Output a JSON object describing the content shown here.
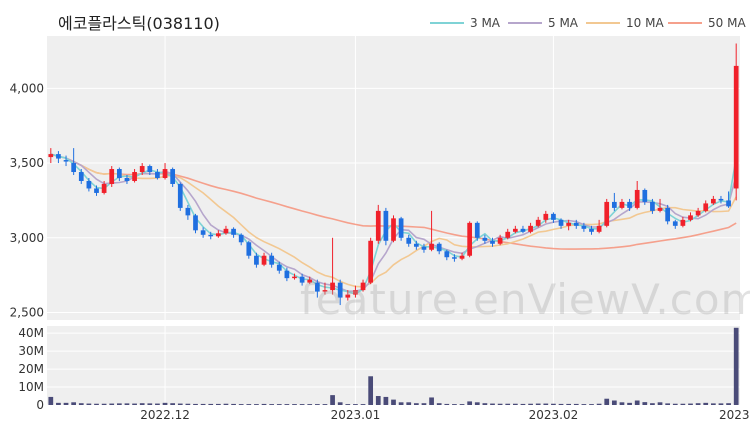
{
  "title": "에코플라스틱(038110)",
  "watermark": "feature.enViewV.com",
  "legend": [
    {
      "label": "3 MA",
      "color": "#7fd3d6"
    },
    {
      "label": "5 MA",
      "color": "#b6a6cc"
    },
    {
      "label": "10 MA",
      "color": "#f2c892"
    },
    {
      "label": "50 MA",
      "color": "#f5a08c"
    }
  ],
  "colors": {
    "up": "#f0202a",
    "down": "#1f6fe0",
    "volume": "#4a4b78",
    "panel_bg": "#efefef"
  },
  "chart_data": {
    "type": "candlestick",
    "price_ylim": [
      2450,
      4350
    ],
    "price_ticks": [
      {
        "v": 2500,
        "label": "2,500"
      },
      {
        "v": 3000,
        "label": "3,000"
      },
      {
        "v": 3500,
        "label": "3,500"
      },
      {
        "v": 4000,
        "label": "4,000"
      }
    ],
    "volume_ylim": [
      0,
      44000000
    ],
    "volume_ticks": [
      {
        "v": 0,
        "label": "0"
      },
      {
        "v": 10000000,
        "label": "10M"
      },
      {
        "v": 20000000,
        "label": "20M"
      },
      {
        "v": 30000000,
        "label": "30M"
      },
      {
        "v": 40000000,
        "label": "40M"
      }
    ],
    "x_labels": [
      {
        "i": 15,
        "label": "2022.12"
      },
      {
        "i": 40,
        "label": "2023.01"
      },
      {
        "i": 66,
        "label": "2023.02"
      },
      {
        "i": 91,
        "label": "2023.03"
      }
    ],
    "candles": [
      [
        3540,
        3560,
        3600,
        3500
      ],
      [
        3560,
        3530,
        3580,
        3500
      ],
      [
        3520,
        3510,
        3550,
        3480
      ],
      [
        3500,
        3440,
        3600,
        3420
      ],
      [
        3440,
        3380,
        3460,
        3360
      ],
      [
        3380,
        3330,
        3400,
        3310
      ],
      [
        3330,
        3300,
        3350,
        3280
      ],
      [
        3300,
        3360,
        3380,
        3290
      ],
      [
        3360,
        3460,
        3480,
        3340
      ],
      [
        3460,
        3400,
        3470,
        3380
      ],
      [
        3400,
        3380,
        3420,
        3360
      ],
      [
        3380,
        3440,
        3460,
        3370
      ],
      [
        3440,
        3480,
        3500,
        3420
      ],
      [
        3480,
        3440,
        3490,
        3420
      ],
      [
        3440,
        3400,
        3460,
        3390
      ],
      [
        3400,
        3460,
        3500,
        3390
      ],
      [
        3460,
        3360,
        3470,
        3340
      ],
      [
        3360,
        3200,
        3370,
        3180
      ],
      [
        3200,
        3150,
        3220,
        3120
      ],
      [
        3150,
        3050,
        3160,
        3030
      ],
      [
        3050,
        3020,
        3070,
        3000
      ],
      [
        3020,
        3010,
        3040,
        2990
      ],
      [
        3010,
        3030,
        3050,
        3000
      ],
      [
        3030,
        3060,
        3080,
        3020
      ],
      [
        3060,
        3020,
        3070,
        3000
      ],
      [
        3020,
        2970,
        3030,
        2950
      ],
      [
        2970,
        2880,
        2980,
        2860
      ],
      [
        2880,
        2820,
        2900,
        2800
      ],
      [
        2820,
        2880,
        2900,
        2810
      ],
      [
        2880,
        2820,
        2900,
        2800
      ],
      [
        2820,
        2780,
        2840,
        2760
      ],
      [
        2780,
        2730,
        2800,
        2710
      ],
      [
        2730,
        2740,
        2760,
        2720
      ],
      [
        2740,
        2700,
        2760,
        2680
      ],
      [
        2700,
        2720,
        2740,
        2690
      ],
      [
        2700,
        2640,
        2720,
        2600
      ],
      [
        2640,
        2650,
        2700,
        2620
      ],
      [
        2650,
        2700,
        3000,
        2620
      ],
      [
        2700,
        2600,
        2720,
        2550
      ],
      [
        2600,
        2620,
        2650,
        2580
      ],
      [
        2620,
        2650,
        2680,
        2600
      ],
      [
        2650,
        2700,
        2720,
        2640
      ],
      [
        2700,
        2980,
        3000,
        2690
      ],
      [
        2980,
        3180,
        3220,
        2960
      ],
      [
        3180,
        2980,
        3200,
        2950
      ],
      [
        2980,
        3130,
        3150,
        2970
      ],
      [
        3130,
        3000,
        3140,
        2980
      ],
      [
        3000,
        2960,
        3020,
        2940
      ],
      [
        2960,
        2940,
        2980,
        2920
      ],
      [
        2940,
        2920,
        2960,
        2900
      ],
      [
        2920,
        2960,
        3180,
        2910
      ],
      [
        2960,
        2910,
        2970,
        2890
      ],
      [
        2910,
        2870,
        2920,
        2850
      ],
      [
        2870,
        2860,
        2890,
        2840
      ],
      [
        2860,
        2880,
        2900,
        2850
      ],
      [
        2880,
        3100,
        3110,
        2870
      ],
      [
        3100,
        3000,
        3110,
        2980
      ],
      [
        3000,
        2980,
        3020,
        2960
      ],
      [
        2980,
        2960,
        3000,
        2940
      ],
      [
        2960,
        3000,
        3020,
        2950
      ],
      [
        3000,
        3040,
        3060,
        2990
      ],
      [
        3040,
        3060,
        3080,
        3030
      ],
      [
        3060,
        3040,
        3080,
        3030
      ],
      [
        3040,
        3080,
        3100,
        3030
      ],
      [
        3080,
        3120,
        3140,
        3070
      ],
      [
        3120,
        3160,
        3180,
        3100
      ],
      [
        3160,
        3120,
        3170,
        3100
      ],
      [
        3120,
        3080,
        3130,
        3060
      ],
      [
        3080,
        3100,
        3120,
        3050
      ],
      [
        3100,
        3080,
        3120,
        3060
      ],
      [
        3080,
        3060,
        3100,
        3040
      ],
      [
        3060,
        3040,
        3080,
        3020
      ],
      [
        3040,
        3080,
        3120,
        3030
      ],
      [
        3080,
        3240,
        3260,
        3070
      ],
      [
        3240,
        3200,
        3300,
        3180
      ],
      [
        3200,
        3240,
        3260,
        3190
      ],
      [
        3240,
        3200,
        3260,
        3180
      ],
      [
        3200,
        3320,
        3380,
        3190
      ],
      [
        3320,
        3240,
        3330,
        3220
      ],
      [
        3240,
        3180,
        3260,
        3160
      ],
      [
        3180,
        3200,
        3260,
        3170
      ],
      [
        3200,
        3110,
        3220,
        3090
      ],
      [
        3110,
        3080,
        3120,
        3060
      ],
      [
        3080,
        3120,
        3140,
        3070
      ],
      [
        3120,
        3150,
        3170,
        3110
      ],
      [
        3150,
        3180,
        3200,
        3140
      ],
      [
        3180,
        3230,
        3250,
        3170
      ],
      [
        3230,
        3260,
        3280,
        3220
      ],
      [
        3260,
        3250,
        3280,
        3230
      ],
      [
        3250,
        3210,
        3310,
        3200
      ],
      [
        3330,
        4150,
        4300,
        3250
      ]
    ],
    "volumes": [
      4500000,
      1200000,
      1200000,
      1500000,
      1000000,
      800000,
      700000,
      700000,
      800000,
      900000,
      900000,
      800000,
      1000000,
      900000,
      800000,
      1200000,
      1000000,
      800000,
      700000,
      600000,
      600000,
      600000,
      600000,
      700000,
      600000,
      500000,
      500000,
      500000,
      600000,
      500000,
      500000,
      500000,
      500000,
      500000,
      500000,
      500000,
      500000,
      5500000,
      1500000,
      500000,
      500000,
      500000,
      16000000,
      5000000,
      4500000,
      3000000,
      1500000,
      1500000,
      1000000,
      1000000,
      4200000,
      1000000,
      600000,
      500000,
      500000,
      2000000,
      1500000,
      1000000,
      800000,
      700000,
      700000,
      700000,
      600000,
      700000,
      800000,
      800000,
      700000,
      600000,
      600000,
      600000,
      500000,
      500000,
      700000,
      3500000,
      2500000,
      1500000,
      1200000,
      2500000,
      1600000,
      1000000,
      1500000,
      900000,
      700000,
      700000,
      800000,
      1000000,
      1200000,
      900000,
      900000,
      1000000,
      43000000
    ],
    "ma_windows": [
      3,
      5,
      10,
      50
    ]
  }
}
